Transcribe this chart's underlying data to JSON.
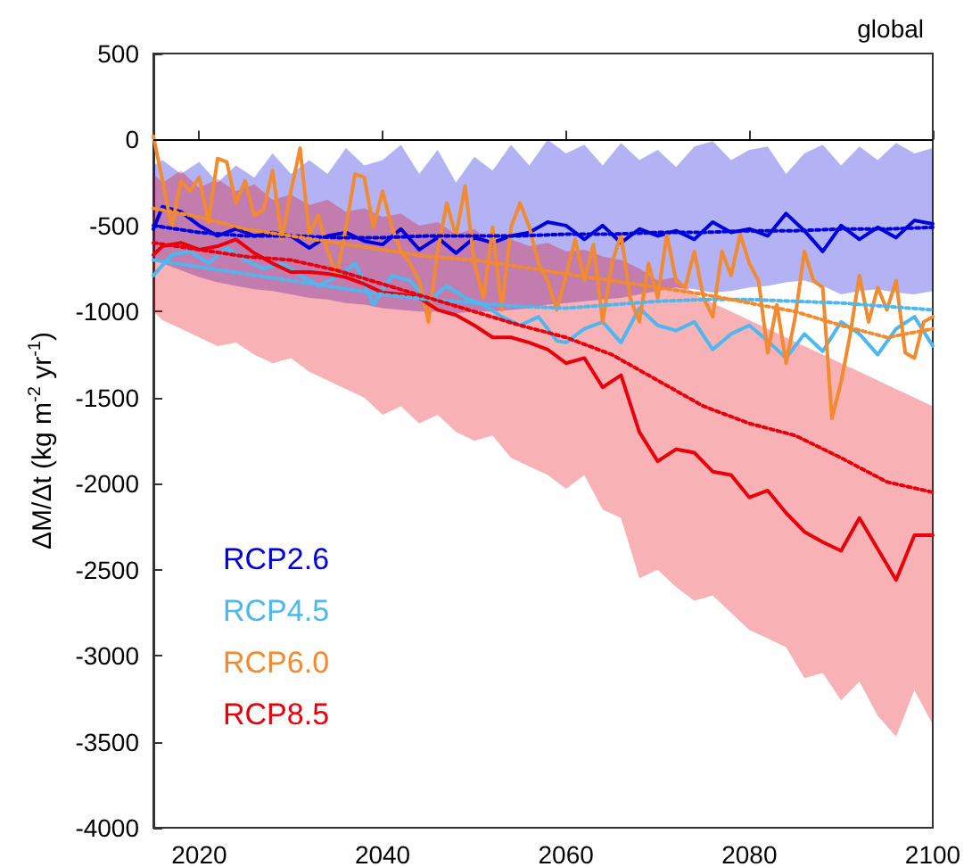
{
  "chart_data": {
    "type": "line",
    "title": "global",
    "ylabel": "ΔM/Δt (kg m$^{-2}$ yr$^{-1}$)",
    "xlim": [
      2015,
      2100
    ],
    "xticks": [
      2020,
      2040,
      2060,
      2080,
      2100
    ],
    "ylim": [
      -4000,
      500
    ],
    "yticks": [
      -4000,
      -3500,
      -3000,
      -2500,
      -2000,
      -1500,
      -1000,
      -500,
      0,
      500
    ],
    "grid": false,
    "legend": "bottom left",
    "marker": "none",
    "line_style": "solid",
    "ref_lines": [
      {
        "axis": "y",
        "value": 0,
        "color": "#000000"
      }
    ],
    "series": [
      {
        "name": "RCP2.6",
        "color": "#0000dd",
        "x": [
          2015,
          2016,
          2018,
          2020,
          2022,
          2024,
          2026,
          2028,
          2030,
          2032,
          2034,
          2036,
          2038,
          2040,
          2042,
          2044,
          2046,
          2048,
          2050,
          2052,
          2054,
          2056,
          2058,
          2060,
          2062,
          2064,
          2066,
          2068,
          2070,
          2072,
          2074,
          2076,
          2078,
          2080,
          2082,
          2084,
          2086,
          2088,
          2090,
          2092,
          2094,
          2096,
          2098,
          2100
        ],
        "values": [
          -520,
          -390,
          -420,
          -500,
          -560,
          -520,
          -560,
          -540,
          -560,
          -630,
          -560,
          -540,
          -590,
          -610,
          -520,
          -640,
          -570,
          -660,
          -570,
          -600,
          -560,
          -540,
          -480,
          -500,
          -580,
          -500,
          -600,
          -520,
          -560,
          -530,
          -580,
          -480,
          -540,
          -520,
          -560,
          -430,
          -530,
          -650,
          -500,
          -580,
          -510,
          -570,
          -470,
          -490
        ],
        "lower": [
          -700,
          -720,
          -760,
          -800,
          -830,
          -850,
          -870,
          -880,
          -900,
          -920,
          -930,
          -950,
          -960,
          -980,
          -990,
          -1000,
          -1000,
          -1010,
          -1000,
          -1000,
          -990,
          -980,
          -960,
          -950,
          -940,
          -930,
          -920,
          -900,
          -880,
          -860,
          -870,
          -890,
          -880,
          -860,
          -850,
          -830,
          -820,
          -850,
          -900,
          -880,
          -870,
          -890,
          -900,
          -880
        ],
        "upper": [
          -150,
          -120,
          -200,
          -130,
          -250,
          -150,
          -220,
          -80,
          -200,
          -120,
          -200,
          -50,
          -150,
          -120,
          -30,
          -200,
          -60,
          -250,
          -100,
          -180,
          -30,
          -150,
          0,
          -80,
          -30,
          -150,
          -20,
          -120,
          -60,
          -160,
          -40,
          -10,
          -120,
          -60,
          -40,
          -200,
          -80,
          -30,
          -150,
          -40,
          -120,
          -20,
          -80,
          -50
        ]
      },
      {
        "name": "RCP4.5",
        "color": "#4db8f0",
        "x": [
          2015,
          2017,
          2019,
          2021,
          2023,
          2025,
          2027,
          2029,
          2031,
          2033,
          2035,
          2037,
          2039,
          2041,
          2043,
          2045,
          2047,
          2049,
          2051,
          2053,
          2055,
          2057,
          2059,
          2060,
          2062,
          2064,
          2066,
          2068,
          2070,
          2072,
          2074,
          2076,
          2078,
          2080,
          2082,
          2084,
          2086,
          2088,
          2090,
          2092,
          2094,
          2096,
          2098,
          2100
        ],
        "values": [
          -790,
          -670,
          -650,
          -720,
          -630,
          -700,
          -750,
          -720,
          -790,
          -850,
          -800,
          -720,
          -960,
          -790,
          -820,
          -940,
          -850,
          -920,
          -960,
          -1030,
          -1080,
          -1030,
          -1170,
          -1180,
          -1100,
          -1060,
          -1180,
          -980,
          -1080,
          -1110,
          -1060,
          -1220,
          -1130,
          -1080,
          -1170,
          -1270,
          -1130,
          -1230,
          -1060,
          -1130,
          -1250,
          -1100,
          -1030,
          -1200
        ]
      },
      {
        "name": "RCP6.0",
        "color": "#f28a30",
        "x": [
          2015,
          2016,
          2017,
          2018,
          2019,
          2020,
          2021,
          2022,
          2023,
          2024,
          2025,
          2026,
          2027,
          2028,
          2029,
          2030,
          2031,
          2032,
          2033,
          2034,
          2035,
          2036,
          2037,
          2038,
          2039,
          2040,
          2041,
          2042,
          2043,
          2044,
          2045,
          2046,
          2047,
          2048,
          2049,
          2050,
          2051,
          2052,
          2053,
          2054,
          2055,
          2056,
          2057,
          2058,
          2059,
          2060,
          2061,
          2062,
          2063,
          2064,
          2065,
          2066,
          2067,
          2068,
          2069,
          2070,
          2071,
          2072,
          2073,
          2074,
          2075,
          2076,
          2077,
          2078,
          2079,
          2080,
          2081,
          2082,
          2083,
          2084,
          2085,
          2086,
          2087,
          2088,
          2089,
          2090,
          2091,
          2092,
          2093,
          2094,
          2095,
          2096,
          2097,
          2098,
          2099,
          2100
        ],
        "values": [
          20,
          -240,
          -510,
          -240,
          -300,
          -220,
          -480,
          -110,
          -130,
          -370,
          -240,
          -440,
          -410,
          -180,
          -580,
          -300,
          -50,
          -550,
          -440,
          -650,
          -790,
          -510,
          -200,
          -220,
          -510,
          -300,
          -510,
          -650,
          -720,
          -820,
          -1060,
          -650,
          -370,
          -560,
          -270,
          -720,
          -920,
          -510,
          -990,
          -510,
          -370,
          -510,
          -720,
          -820,
          -990,
          -790,
          -580,
          -820,
          -610,
          -1060,
          -720,
          -550,
          -920,
          -1060,
          -720,
          -920,
          -550,
          -820,
          -860,
          -650,
          -920,
          -1030,
          -650,
          -790,
          -550,
          -720,
          -820,
          -1240,
          -960,
          -1300,
          -1030,
          -650,
          -820,
          -860,
          -1620,
          -1410,
          -1130,
          -790,
          -1060,
          -860,
          -990,
          -820,
          -1240,
          -1270,
          -1060,
          -1030
        ]
      },
      {
        "name": "RCP8.5",
        "color": "#e8000b",
        "x": [
          2015,
          2016,
          2018,
          2020,
          2022,
          2024,
          2026,
          2028,
          2030,
          2032,
          2034,
          2036,
          2038,
          2040,
          2042,
          2044,
          2046,
          2048,
          2050,
          2052,
          2054,
          2056,
          2058,
          2060,
          2062,
          2064,
          2066,
          2068,
          2070,
          2072,
          2074,
          2076,
          2078,
          2080,
          2082,
          2084,
          2086,
          2088,
          2090,
          2092,
          2094,
          2096,
          2098,
          2100
        ],
        "values": [
          -670,
          -620,
          -600,
          -640,
          -620,
          -580,
          -660,
          -720,
          -770,
          -770,
          -780,
          -800,
          -840,
          -890,
          -900,
          -920,
          -990,
          -1020,
          -1080,
          -1150,
          -1150,
          -1180,
          -1220,
          -1300,
          -1270,
          -1440,
          -1370,
          -1700,
          -1870,
          -1800,
          -1820,
          -1930,
          -1950,
          -2080,
          -2040,
          -2170,
          -2280,
          -2340,
          -2390,
          -2200,
          -2380,
          -2560,
          -2300,
          -2300
        ],
        "lower": [
          -1000,
          -1050,
          -1100,
          -1150,
          -1200,
          -1180,
          -1250,
          -1300,
          -1270,
          -1350,
          -1400,
          -1450,
          -1500,
          -1600,
          -1550,
          -1650,
          -1600,
          -1700,
          -1750,
          -1720,
          -1850,
          -1900,
          -1950,
          -2030,
          -1950,
          -2150,
          -2200,
          -2550,
          -2500,
          -2600,
          -2680,
          -2650,
          -2750,
          -2850,
          -2900,
          -2950,
          -3130,
          -3100,
          -3260,
          -3150,
          -3350,
          -3470,
          -3200,
          -3400
        ],
        "upper": [
          -200,
          -250,
          -180,
          -280,
          -230,
          -300,
          -260,
          -350,
          -320,
          -380,
          -350,
          -420,
          -400,
          -450,
          -430,
          -500,
          -480,
          -550,
          -520,
          -600,
          -580,
          -620,
          -600,
          -650,
          -640,
          -680,
          -700,
          -750,
          -820,
          -800,
          -900,
          -950,
          -1000,
          -1050,
          -1100,
          -1150,
          -1200,
          -1250,
          -1300,
          -1350,
          -1400,
          -1450,
          -1500,
          -1550
        ]
      },
      {
        "color": "#0000dd",
        "line_style": "dotted",
        "x": [
          2015,
          2020,
          2025,
          2030,
          2035,
          2040,
          2045,
          2050,
          2055,
          2060,
          2065,
          2070,
          2075,
          2080,
          2085,
          2090,
          2095,
          2100
        ],
        "values": [
          -500,
          -540,
          -560,
          -560,
          -570,
          -570,
          -560,
          -560,
          -560,
          -550,
          -550,
          -540,
          -540,
          -530,
          -530,
          -520,
          -520,
          -510
        ]
      },
      {
        "color": "#4db8f0",
        "line_style": "dotted",
        "x": [
          2015,
          2020,
          2025,
          2030,
          2035,
          2040,
          2045,
          2050,
          2055,
          2060,
          2065,
          2070,
          2075,
          2080,
          2085,
          2090,
          2095,
          2100
        ],
        "values": [
          -700,
          -740,
          -780,
          -820,
          -860,
          -900,
          -930,
          -950,
          -970,
          -980,
          -960,
          -940,
          -930,
          -930,
          -940,
          -950,
          -970,
          -990
        ]
      },
      {
        "color": "#f28a30",
        "line_style": "dotted",
        "x": [
          2015,
          2020,
          2025,
          2030,
          2035,
          2040,
          2045,
          2050,
          2055,
          2060,
          2065,
          2070,
          2075,
          2080,
          2085,
          2090,
          2095,
          2100
        ],
        "values": [
          -400,
          -450,
          -520,
          -560,
          -600,
          -640,
          -680,
          -700,
          -740,
          -780,
          -820,
          -860,
          -900,
          -950,
          -1000,
          -1080,
          -1150,
          -1100
        ]
      },
      {
        "color": "#e8000b",
        "line_style": "dotted",
        "x": [
          2015,
          2020,
          2025,
          2030,
          2035,
          2040,
          2045,
          2050,
          2055,
          2060,
          2065,
          2070,
          2075,
          2080,
          2085,
          2090,
          2095,
          2100
        ],
        "values": [
          -600,
          -640,
          -680,
          -700,
          -760,
          -840,
          -920,
          -1000,
          -1080,
          -1150,
          -1250,
          -1400,
          -1550,
          -1650,
          -1720,
          -1850,
          -1990,
          -2050
        ]
      }
    ]
  }
}
